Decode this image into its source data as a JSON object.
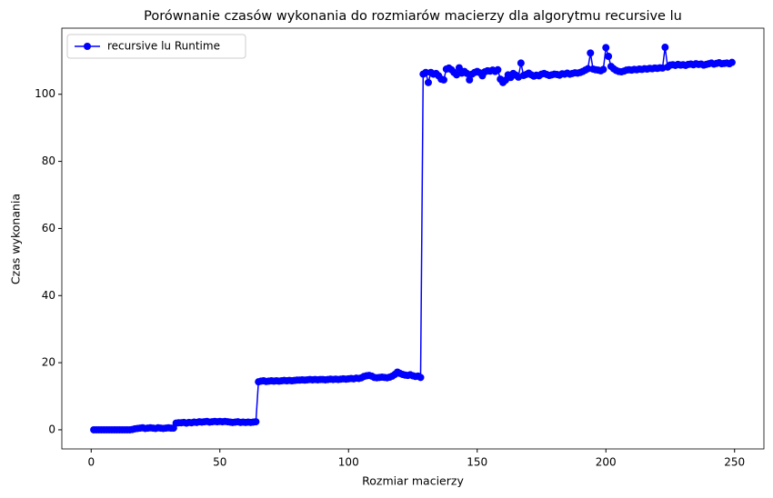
{
  "chart_data": {
    "type": "line",
    "title": "Porównanie czasów wykonania do rozmiarów macierzy dla algorytmu recursive lu",
    "xlabel": "Rozmiar macierzy",
    "ylabel": "Czas wykonania",
    "xlim": [
      -11.4,
      261.4
    ],
    "ylim": [
      -5.7,
      119.7
    ],
    "xticks": [
      0,
      50,
      100,
      150,
      200,
      250
    ],
    "yticks": [
      0,
      20,
      40,
      60,
      80,
      100
    ],
    "grid": false,
    "legend_loc": "upper left",
    "x": [
      1,
      2,
      3,
      4,
      5,
      6,
      7,
      8,
      9,
      10,
      11,
      12,
      13,
      14,
      15,
      16,
      17,
      18,
      19,
      20,
      21,
      22,
      23,
      24,
      25,
      26,
      27,
      28,
      29,
      30,
      31,
      32,
      33,
      34,
      35,
      36,
      37,
      38,
      39,
      40,
      41,
      42,
      43,
      44,
      45,
      46,
      47,
      48,
      49,
      50,
      51,
      52,
      53,
      54,
      55,
      56,
      57,
      58,
      59,
      60,
      61,
      62,
      63,
      64,
      65,
      66,
      67,
      68,
      69,
      70,
      71,
      72,
      73,
      74,
      75,
      76,
      77,
      78,
      79,
      80,
      81,
      82,
      83,
      84,
      85,
      86,
      87,
      88,
      89,
      90,
      91,
      92,
      93,
      94,
      95,
      96,
      97,
      98,
      99,
      100,
      101,
      102,
      103,
      104,
      105,
      106,
      107,
      108,
      109,
      110,
      111,
      112,
      113,
      114,
      115,
      116,
      117,
      118,
      119,
      120,
      121,
      122,
      123,
      124,
      125,
      126,
      127,
      128,
      129,
      130,
      131,
      132,
      133,
      134,
      135,
      136,
      137,
      138,
      139,
      140,
      141,
      142,
      143,
      144,
      145,
      146,
      147,
      148,
      149,
      150,
      151,
      152,
      153,
      154,
      155,
      156,
      157,
      158,
      159,
      160,
      161,
      162,
      163,
      164,
      165,
      166,
      167,
      168,
      169,
      170,
      171,
      172,
      173,
      174,
      175,
      176,
      177,
      178,
      179,
      180,
      181,
      182,
      183,
      184,
      185,
      186,
      187,
      188,
      189,
      190,
      191,
      192,
      193,
      194,
      195,
      196,
      197,
      198,
      199,
      200,
      201,
      202,
      203,
      204,
      205,
      206,
      207,
      208,
      209,
      210,
      211,
      212,
      213,
      214,
      215,
      216,
      217,
      218,
      219,
      220,
      221,
      222,
      223,
      224,
      225,
      226,
      227,
      228,
      229,
      230,
      231,
      232,
      233,
      234,
      235,
      236,
      237,
      238,
      239,
      240,
      241,
      242,
      243,
      244,
      245,
      246,
      247,
      248,
      249
    ],
    "series": [
      {
        "name": "recursive lu Runtime",
        "color": "#0000ff",
        "values": [
          0,
          0,
          0,
          0,
          0,
          0,
          0,
          0,
          0,
          0,
          0,
          0,
          0,
          0,
          0,
          0.1,
          0.3,
          0.4,
          0.5,
          0.6,
          0.4,
          0.5,
          0.6,
          0.5,
          0.4,
          0.6,
          0.5,
          0.4,
          0.5,
          0.6,
          0.5,
          0.5,
          2.0,
          2.1,
          2.1,
          2.2,
          2.0,
          2.2,
          2.1,
          2.3,
          2.2,
          2.4,
          2.3,
          2.4,
          2.5,
          2.3,
          2.4,
          2.5,
          2.4,
          2.5,
          2.4,
          2.5,
          2.4,
          2.3,
          2.2,
          2.3,
          2.4,
          2.2,
          2.3,
          2.2,
          2.3,
          2.2,
          2.3,
          2.4,
          14.3,
          14.5,
          14.6,
          14.4,
          14.5,
          14.6,
          14.5,
          14.6,
          14.5,
          14.6,
          14.7,
          14.6,
          14.7,
          14.6,
          14.7,
          14.8,
          14.8,
          14.9,
          14.8,
          14.9,
          15.0,
          14.9,
          15.0,
          14.9,
          15.0,
          15.0,
          14.9,
          15.0,
          15.1,
          15.0,
          15.1,
          15.0,
          15.1,
          15.2,
          15.1,
          15.2,
          15.3,
          15.2,
          15.4,
          15.3,
          15.5,
          15.9,
          16.1,
          16.2,
          16.0,
          15.6,
          15.5,
          15.6,
          15.7,
          15.6,
          15.5,
          15.7,
          16.0,
          16.5,
          17.2,
          16.8,
          16.5,
          16.3,
          16.2,
          16.4,
          16.1,
          15.9,
          16.0,
          15.6,
          106,
          106.5,
          103.5,
          106.5,
          106,
          106.2,
          105.5,
          104.5,
          104.3,
          107.5,
          107.8,
          107.3,
          106.5,
          105.8,
          107.9,
          106.3,
          106.8,
          106.2,
          104.3,
          106,
          106.5,
          106.8,
          106.4,
          105.5,
          106.7,
          107,
          106.9,
          107.2,
          106.8,
          107.3,
          104.5,
          103.5,
          104.2,
          105.8,
          105,
          106.2,
          105.7,
          105.1,
          109.3,
          105.6,
          105.9,
          106.3,
          105.8,
          105.4,
          105.7,
          105.5,
          106,
          106.2,
          105.9,
          105.6,
          105.8,
          106,
          105.9,
          105.7,
          106.1,
          106,
          106.3,
          106,
          106.2,
          106.4,
          106.3,
          106.5,
          106.8,
          107.2,
          107.6,
          112.3,
          107.5,
          107.3,
          107.2,
          107,
          107.4,
          113.9,
          111.3,
          108.3,
          107.6,
          107.1,
          106.8,
          106.7,
          106.9,
          107.2,
          107.3,
          107.2,
          107.4,
          107.3,
          107.5,
          107.4,
          107.6,
          107.5,
          107.7,
          107.6,
          107.8,
          107.7,
          107.9,
          107.8,
          114,
          108.1,
          108.7,
          108.8,
          108.6,
          108.9,
          108.7,
          108.8,
          108.6,
          108.9,
          109,
          108.8,
          109.1,
          108.9,
          109,
          108.7,
          108.9,
          109.1,
          109.3,
          109,
          109.2,
          109.4,
          109.1,
          109.2,
          109.3,
          109.1,
          109.5
        ]
      }
    ]
  }
}
